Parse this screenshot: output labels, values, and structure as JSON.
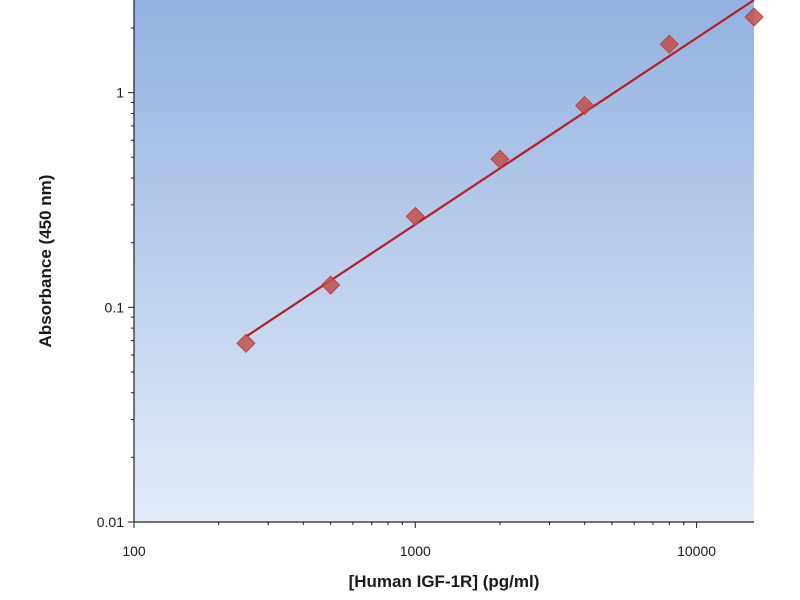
{
  "chart_data": {
    "type": "scatter",
    "title": "",
    "xlabel": "[Human IGF-1R]  (pg/ml)",
    "ylabel": "Absorbance (450 nm)",
    "x_scale": "log",
    "y_scale": "log",
    "xlim": [
      100,
      16000
    ],
    "ylim": [
      0.01,
      2.7
    ],
    "x_ticks": [
      100,
      1000,
      10000
    ],
    "x_tick_labels": [
      "100",
      "1000",
      "10000"
    ],
    "y_ticks": [
      0.01,
      0.1,
      1
    ],
    "y_tick_labels": [
      "0.01",
      "0.1",
      "1"
    ],
    "grid": false,
    "legend": "none",
    "colors": {
      "marker": "#c0504d",
      "fit_line": "#b0202a",
      "plot_bg_top": "#93b1e0",
      "plot_bg_bottom": "#e4ecf8"
    },
    "series": [
      {
        "marker": "diamond",
        "x": [
          250,
          500,
          1000,
          2000,
          4000,
          8000,
          16000
        ],
        "y": [
          0.068,
          0.127,
          0.265,
          0.49,
          0.87,
          1.68,
          2.25
        ]
      }
    ],
    "fit_line": {
      "x": [
        250,
        16000
      ],
      "y": [
        0.073,
        2.7
      ]
    }
  }
}
